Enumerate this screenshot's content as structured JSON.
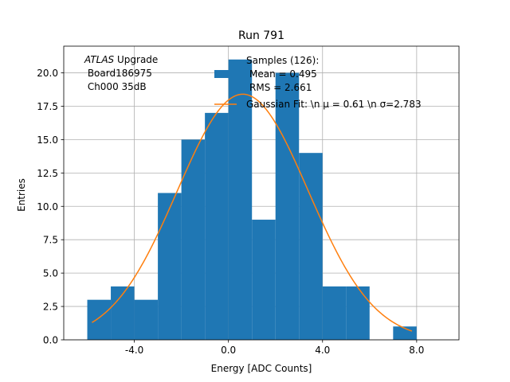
{
  "chart_data": {
    "type": "bar",
    "title": "Run 791",
    "xlabel": "Energy [ADC Counts]",
    "ylabel": "Entries",
    "xlim": [
      -7.0,
      9.8
    ],
    "ylim": [
      0,
      22.0
    ],
    "grid": true,
    "bar_color": "#1f77b4",
    "fit_color": "#ff7f0e",
    "x_ticks": [
      -4.0,
      0.0,
      4.0,
      8.0
    ],
    "x_tick_labels": [
      "-4.0",
      "0.0",
      "4.0",
      "8.0"
    ],
    "y_ticks": [
      0.0,
      2.5,
      5.0,
      7.5,
      10.0,
      12.5,
      15.0,
      17.5,
      20.0
    ],
    "y_tick_labels": [
      "0.0",
      "2.5",
      "5.0",
      "7.5",
      "10.0",
      "12.5",
      "15.0",
      "17.5",
      "20.0"
    ],
    "bins": [
      {
        "x0": -6,
        "x1": -5,
        "count": 3
      },
      {
        "x0": -5,
        "x1": -4,
        "count": 4
      },
      {
        "x0": -4,
        "x1": -3,
        "count": 3
      },
      {
        "x0": -3,
        "x1": -2,
        "count": 11
      },
      {
        "x0": -2,
        "x1": -1,
        "count": 15
      },
      {
        "x0": -1,
        "x1": 0,
        "count": 17
      },
      {
        "x0": 0,
        "x1": 1,
        "count": 21
      },
      {
        "x0": 1,
        "x1": 2,
        "count": 9
      },
      {
        "x0": 2,
        "x1": 3,
        "count": 20
      },
      {
        "x0": 3,
        "x1": 4,
        "count": 14
      },
      {
        "x0": 4,
        "x1": 5,
        "count": 4
      },
      {
        "x0": 5,
        "x1": 6,
        "count": 4
      },
      {
        "x0": 6,
        "x1": 7,
        "count": 0
      },
      {
        "x0": 7,
        "x1": 8,
        "count": 1
      }
    ],
    "fit": {
      "amplitude": 18.4,
      "mu": 0.61,
      "sigma": 2.783,
      "x_range": [
        -5.8,
        7.8
      ]
    },
    "legend": {
      "placement": "top-right",
      "samples_lines": [
        "Samples (126):",
        "Mean = 0.495",
        "RMS = 2.661"
      ],
      "fit_label": "Gaussian Fit: \\n μ = 0.61 \\n σ=2.783"
    },
    "annotation": {
      "italic": "ATLAS",
      "rest": " Upgrade",
      "lines": [
        " Board186975",
        " Ch000 35dB"
      ]
    }
  }
}
